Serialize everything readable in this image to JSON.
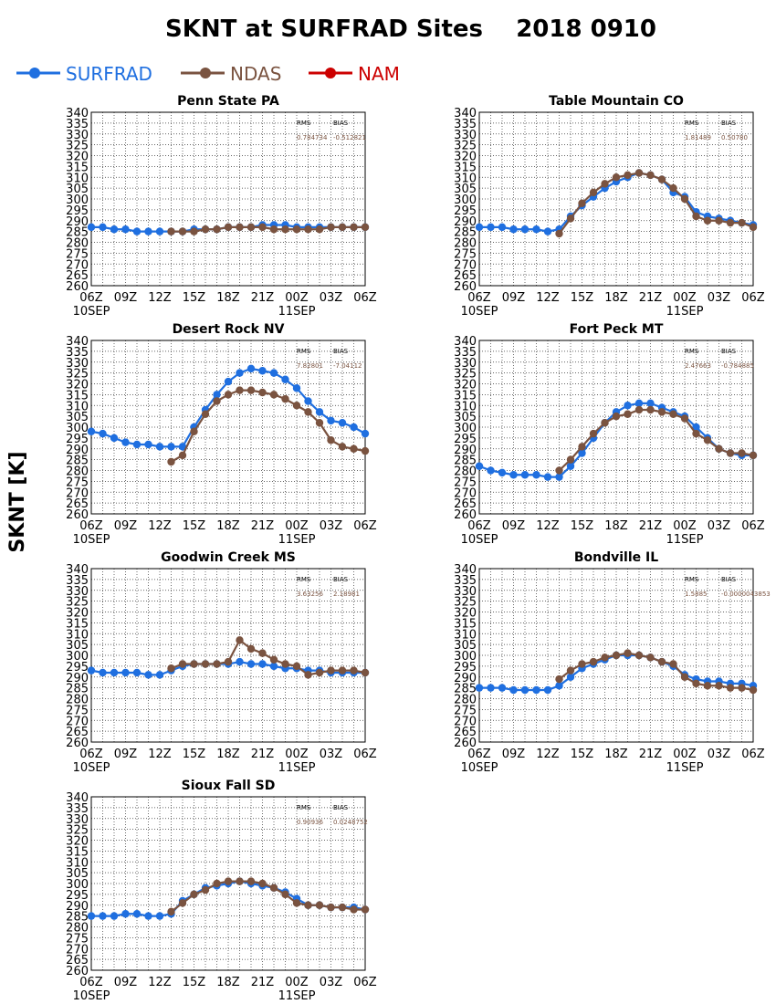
{
  "title": "SKNT at SURFRAD Sites    2018 0910",
  "ylabel": "SKNT [K]",
  "legend": [
    {
      "name": "SURFRAD",
      "color": "#1f6fe0"
    },
    {
      "name": "NDAS",
      "color": "#7a5340"
    },
    {
      "name": "NAM",
      "color": "#cc0000"
    }
  ],
  "x_ticks": [
    "06Z",
    "09Z",
    "12Z",
    "15Z",
    "18Z",
    "21Z",
    "00Z",
    "03Z",
    "06Z"
  ],
  "x_date_labels": [
    "10SEP",
    "11SEP"
  ],
  "y_ticks": [
    260,
    265,
    270,
    275,
    280,
    285,
    290,
    295,
    300,
    305,
    310,
    315,
    320,
    325,
    330,
    335,
    340
  ],
  "stat_headers": [
    "RMS",
    "BIAS"
  ],
  "chart_data": [
    {
      "type": "line",
      "title": "Penn State PA",
      "rms": "0.784734",
      "bias": "-0.512821",
      "ylim": [
        260,
        340
      ],
      "x": [
        0,
        1,
        2,
        3,
        4,
        5,
        6,
        7,
        8,
        9,
        10,
        11,
        12,
        13,
        14,
        15,
        16,
        17,
        18,
        19,
        20,
        21,
        22,
        23,
        24
      ],
      "series": [
        {
          "name": "SURFRAD",
          "values": [
            287,
            287,
            286,
            286,
            285,
            285,
            285,
            285,
            285,
            286,
            286,
            286,
            287,
            287,
            287,
            288,
            288,
            288,
            287,
            287,
            287,
            287,
            287,
            287,
            287
          ]
        },
        {
          "name": "NDAS",
          "values": [
            null,
            null,
            null,
            null,
            null,
            null,
            null,
            285,
            285,
            285,
            286,
            286,
            287,
            287,
            287,
            287,
            286,
            286,
            286,
            286,
            286,
            287,
            287,
            287,
            287
          ]
        }
      ]
    },
    {
      "type": "line",
      "title": "Table Mountain CO",
      "rms": "1.81489",
      "bias": "0.50780",
      "ylim": [
        260,
        340
      ],
      "x": [
        0,
        1,
        2,
        3,
        4,
        5,
        6,
        7,
        8,
        9,
        10,
        11,
        12,
        13,
        14,
        15,
        16,
        17,
        18,
        19,
        20,
        21,
        22,
        23,
        24
      ],
      "series": [
        {
          "name": "SURFRAD",
          "values": [
            287,
            287,
            287,
            286,
            286,
            286,
            285,
            286,
            292,
            297,
            301,
            305,
            308,
            310,
            312,
            311,
            309,
            303,
            301,
            294,
            292,
            291,
            290,
            289,
            288
          ]
        },
        {
          "name": "NDAS",
          "values": [
            null,
            null,
            null,
            null,
            null,
            null,
            null,
            284,
            291,
            298,
            303,
            307,
            310,
            311,
            312,
            311,
            309,
            305,
            300,
            292,
            290,
            290,
            289,
            289,
            287
          ]
        }
      ]
    },
    {
      "type": "line",
      "title": "Desert Rock NV",
      "rms": "7.82801",
      "bias": "-7.04112",
      "ylim": [
        260,
        340
      ],
      "x": [
        0,
        1,
        2,
        3,
        4,
        5,
        6,
        7,
        8,
        9,
        10,
        11,
        12,
        13,
        14,
        15,
        16,
        17,
        18,
        19,
        20,
        21,
        22,
        23,
        24
      ],
      "series": [
        {
          "name": "SURFRAD",
          "values": [
            298,
            297,
            295,
            293,
            292,
            292,
            291,
            291,
            291,
            300,
            308,
            315,
            321,
            325,
            327,
            326,
            325,
            322,
            318,
            312,
            307,
            303,
            302,
            300,
            297
          ]
        },
        {
          "name": "NDAS",
          "values": [
            null,
            null,
            null,
            null,
            null,
            null,
            null,
            284,
            287,
            298,
            306,
            312,
            315,
            317,
            317,
            316,
            315,
            313,
            310,
            307,
            302,
            294,
            291,
            290,
            289
          ]
        }
      ]
    },
    {
      "type": "line",
      "title": "Fort Peck MT",
      "rms": "2.47663",
      "bias": "-0.784885",
      "ylim": [
        260,
        340
      ],
      "x": [
        0,
        1,
        2,
        3,
        4,
        5,
        6,
        7,
        8,
        9,
        10,
        11,
        12,
        13,
        14,
        15,
        16,
        17,
        18,
        19,
        20,
        21,
        22,
        23,
        24
      ],
      "series": [
        {
          "name": "SURFRAD",
          "values": [
            282,
            280,
            279,
            278,
            278,
            278,
            277,
            277,
            282,
            288,
            295,
            302,
            307,
            310,
            311,
            311,
            309,
            307,
            305,
            300,
            295,
            290,
            288,
            287,
            287
          ]
        },
        {
          "name": "NDAS",
          "values": [
            null,
            null,
            null,
            null,
            null,
            null,
            null,
            280,
            285,
            291,
            297,
            302,
            305,
            306,
            308,
            308,
            307,
            306,
            304,
            297,
            294,
            290,
            288,
            288,
            287
          ]
        }
      ]
    },
    {
      "type": "line",
      "title": "Goodwin Creek MS",
      "rms": "3.63256",
      "bias": "2.18981",
      "ylim": [
        260,
        340
      ],
      "x": [
        0,
        1,
        2,
        3,
        4,
        5,
        6,
        7,
        8,
        9,
        10,
        11,
        12,
        13,
        14,
        15,
        16,
        17,
        18,
        19,
        20,
        21,
        22,
        23,
        24
      ],
      "series": [
        {
          "name": "SURFRAD",
          "values": [
            293,
            292,
            292,
            292,
            292,
            291,
            291,
            293,
            295,
            296,
            296,
            296,
            296,
            297,
            296,
            296,
            295,
            294,
            294,
            293,
            293,
            292,
            292,
            292,
            292
          ]
        },
        {
          "name": "NDAS",
          "values": [
            null,
            null,
            null,
            null,
            null,
            null,
            null,
            294,
            296,
            296,
            296,
            296,
            297,
            307,
            303,
            301,
            298,
            296,
            295,
            291,
            292,
            293,
            293,
            293,
            292
          ]
        }
      ]
    },
    {
      "type": "line",
      "title": "Bondville IL",
      "rms": "1.5885",
      "bias": "-0.0000043853",
      "ylim": [
        260,
        340
      ],
      "x": [
        0,
        1,
        2,
        3,
        4,
        5,
        6,
        7,
        8,
        9,
        10,
        11,
        12,
        13,
        14,
        15,
        16,
        17,
        18,
        19,
        20,
        21,
        22,
        23,
        24
      ],
      "series": [
        {
          "name": "SURFRAD",
          "values": [
            285,
            285,
            285,
            284,
            284,
            284,
            284,
            286,
            290,
            294,
            296,
            298,
            300,
            300,
            300,
            299,
            297,
            295,
            291,
            289,
            288,
            288,
            287,
            287,
            286
          ]
        },
        {
          "name": "NDAS",
          "values": [
            null,
            null,
            null,
            null,
            null,
            null,
            null,
            289,
            293,
            296,
            297,
            299,
            300,
            301,
            300,
            299,
            297,
            296,
            290,
            287,
            286,
            286,
            285,
            285,
            284
          ]
        }
      ]
    },
    {
      "type": "line",
      "title": "Sioux Fall SD",
      "rms": "0.90936",
      "bias": "0.0248752",
      "ylim": [
        260,
        340
      ],
      "x": [
        0,
        1,
        2,
        3,
        4,
        5,
        6,
        7,
        8,
        9,
        10,
        11,
        12,
        13,
        14,
        15,
        16,
        17,
        18,
        19,
        20,
        21,
        22,
        23,
        24
      ],
      "series": [
        {
          "name": "SURFRAD",
          "values": [
            285,
            285,
            285,
            286,
            286,
            285,
            285,
            286,
            292,
            295,
            298,
            299,
            300,
            301,
            300,
            299,
            298,
            296,
            293,
            290,
            290,
            289,
            289,
            289,
            288
          ]
        },
        {
          "name": "NDAS",
          "values": [
            null,
            null,
            null,
            null,
            null,
            null,
            null,
            287,
            291,
            295,
            297,
            300,
            301,
            301,
            301,
            300,
            298,
            295,
            291,
            290,
            290,
            289,
            289,
            288,
            288
          ]
        }
      ]
    }
  ]
}
